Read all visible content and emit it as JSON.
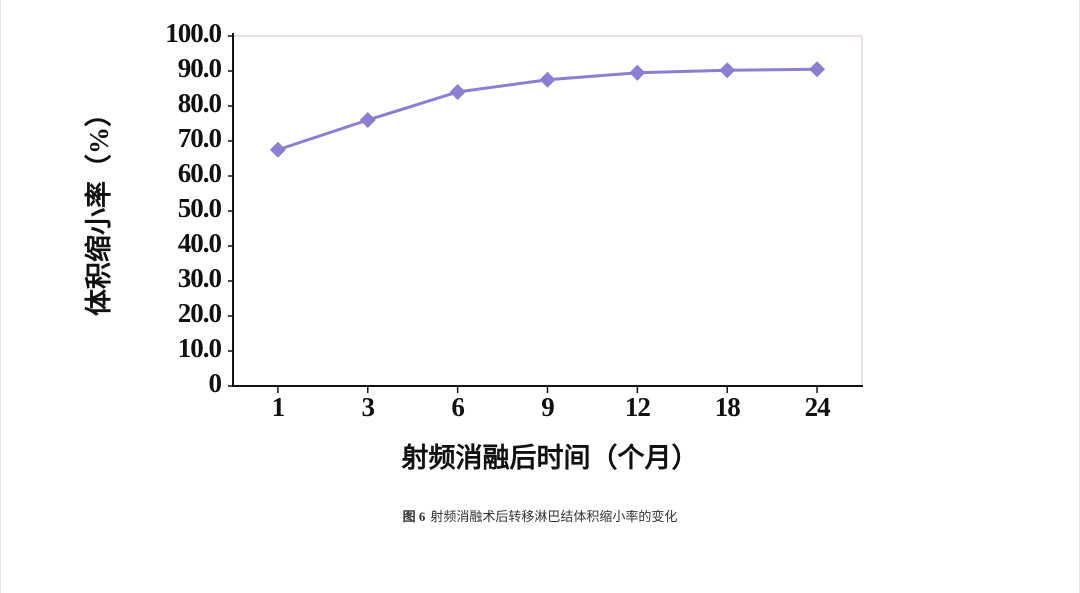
{
  "chart_data": {
    "type": "line",
    "x_label": "射频消融后时间（个月）",
    "y_label": "体积缩小率（%）",
    "categories": [
      "1",
      "3",
      "6",
      "9",
      "12",
      "18",
      "24"
    ],
    "series": [
      {
        "color": "#8b7fd3",
        "values": [
          67.5,
          76.0,
          84.0,
          87.5,
          89.5,
          90.2,
          90.5
        ]
      }
    ],
    "ylim": [
      0,
      100
    ],
    "yticks": [
      0,
      {
        "value": 10,
        "label": "10.0"
      },
      {
        "value": 20,
        "label": "20.0"
      },
      {
        "value": 30,
        "label": "30.0"
      },
      {
        "value": 40,
        "label": "40.0"
      },
      {
        "value": 50,
        "label": "50.0"
      },
      {
        "value": 60,
        "label": "60.0"
      },
      {
        "value": 70,
        "label": "70.0"
      },
      {
        "value": 80,
        "label": "80.0"
      },
      {
        "value": 90,
        "label": "90.0"
      },
      {
        "value": 100,
        "label": "100.0"
      }
    ],
    "grid": false
  },
  "caption": {
    "label": "图 6",
    "text": "射频消融术后转移淋巴结体积缩小率的变化"
  }
}
